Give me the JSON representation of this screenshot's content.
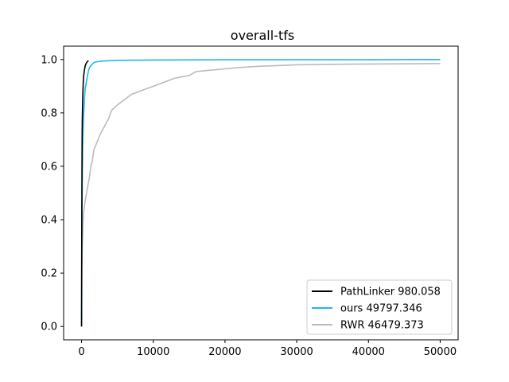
{
  "chart_data": {
    "type": "line",
    "title": "overall-tfs",
    "xlabel": "",
    "ylabel": "",
    "xlim": [
      -2500,
      52500
    ],
    "ylim": [
      -0.05,
      1.05
    ],
    "xticks": [
      0,
      10000,
      20000,
      30000,
      40000,
      50000
    ],
    "xtick_labels": [
      "0",
      "10000",
      "20000",
      "30000",
      "40000",
      "50000"
    ],
    "yticks": [
      0.0,
      0.2,
      0.4,
      0.6,
      0.8,
      1.0
    ],
    "ytick_labels": [
      "0.0",
      "0.2",
      "0.4",
      "0.6",
      "0.8",
      "1.0"
    ],
    "grid": false,
    "legend_position": "lower-right",
    "series": [
      {
        "name": "PathLinker 980.058",
        "color": "#000000",
        "x": [
          0,
          20,
          40,
          60,
          80,
          100,
          150,
          200,
          250,
          300,
          400,
          500,
          600,
          700,
          800,
          900,
          980
        ],
        "y": [
          0.0,
          0.25,
          0.45,
          0.6,
          0.7,
          0.77,
          0.84,
          0.89,
          0.92,
          0.94,
          0.96,
          0.975,
          0.983,
          0.988,
          0.992,
          0.994,
          0.995
        ]
      },
      {
        "name": "ours 49797.346",
        "color": "#1eb9e8",
        "x": [
          0,
          20,
          50,
          100,
          150,
          200,
          300,
          400,
          500,
          700,
          900,
          1100,
          1400,
          1800,
          2500,
          3500,
          5000,
          10000,
          20000,
          30000,
          40000,
          50000
        ],
        "y": [
          0.0,
          0.2,
          0.38,
          0.55,
          0.65,
          0.72,
          0.8,
          0.85,
          0.89,
          0.92,
          0.95,
          0.97,
          0.98,
          0.99,
          0.993,
          0.995,
          0.997,
          0.998,
          0.999,
          0.999,
          0.999,
          1.0
        ]
      },
      {
        "name": "RWR 46479.373",
        "color": "#bbbbbb",
        "x": [
          0,
          50,
          100,
          200,
          300,
          500,
          700,
          900,
          1100,
          1300,
          1500,
          1700,
          2000,
          2300,
          2600,
          3000,
          3400,
          3800,
          4200,
          4600,
          5000,
          5500,
          6000,
          6500,
          7000,
          7500,
          8000,
          9000,
          10000,
          11000,
          12000,
          13000,
          14000,
          15000,
          16000,
          18000,
          20000,
          22000,
          25000,
          28000,
          30000,
          35000,
          40000,
          45000,
          50000
        ],
        "y": [
          0.0,
          0.22,
          0.3,
          0.38,
          0.43,
          0.47,
          0.5,
          0.53,
          0.56,
          0.6,
          0.62,
          0.66,
          0.68,
          0.7,
          0.72,
          0.74,
          0.76,
          0.78,
          0.81,
          0.82,
          0.83,
          0.84,
          0.85,
          0.86,
          0.87,
          0.875,
          0.88,
          0.89,
          0.9,
          0.91,
          0.92,
          0.93,
          0.935,
          0.94,
          0.955,
          0.96,
          0.965,
          0.97,
          0.975,
          0.978,
          0.98,
          0.982,
          0.983,
          0.984,
          0.985
        ]
      }
    ]
  }
}
